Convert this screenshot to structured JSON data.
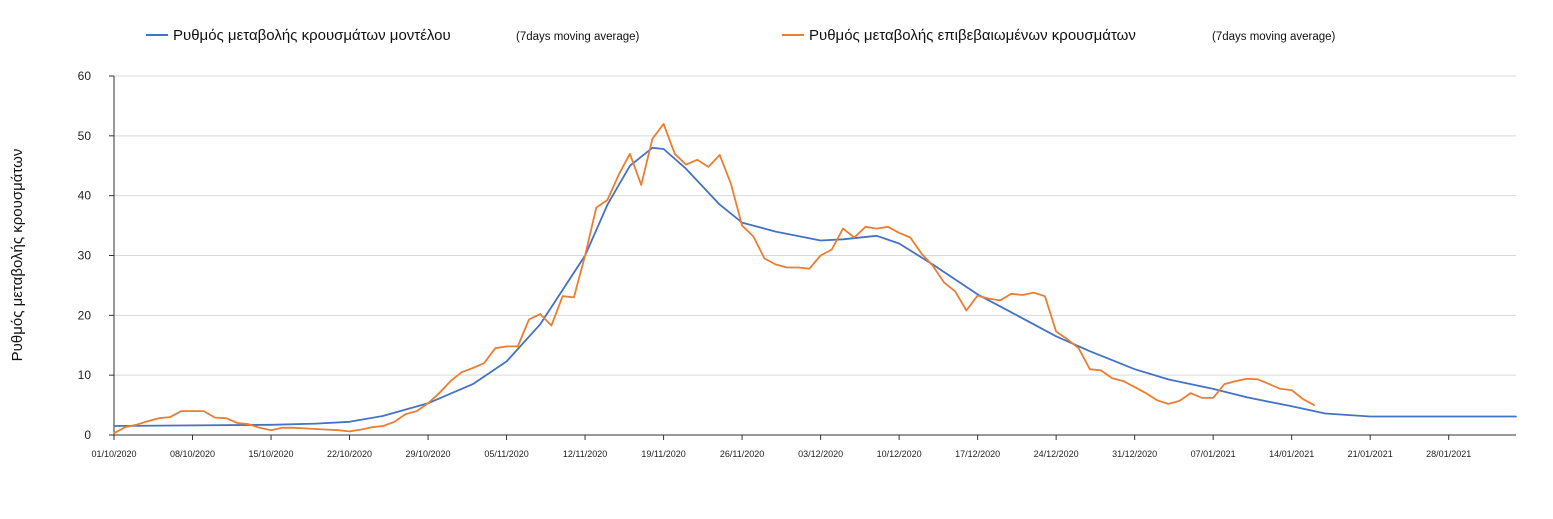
{
  "chart_data": {
    "type": "line",
    "title": "",
    "xlabel": "",
    "ylabel": "Ρυθμός μεταβολής κρουσμάτων",
    "ylim": [
      0,
      60
    ],
    "yticks": [
      0,
      10,
      20,
      30,
      40,
      50,
      60
    ],
    "xlim": [
      "01/10/2020",
      "03/02/2021"
    ],
    "xticks": [
      "01/10/2020",
      "08/10/2020",
      "15/10/2020",
      "22/10/2020",
      "29/10/2020",
      "05/11/2020",
      "12/11/2020",
      "19/11/2020",
      "26/11/2020",
      "03/12/2020",
      "10/12/2020",
      "17/12/2020",
      "24/12/2020",
      "31/12/2020",
      "07/01/2021",
      "14/01/2021",
      "21/01/2021",
      "28/01/2021"
    ],
    "grid": "horizontal",
    "legend_position": "top",
    "series": [
      {
        "name": "Ρυθμός μεταβολής κρουσμάτων μοντέλου",
        "name_note": "(7days moving average)",
        "color": "#4472C4",
        "points": [
          [
            "01/10/2020",
            1.5
          ],
          [
            "08/10/2020",
            1.6
          ],
          [
            "15/10/2020",
            1.7
          ],
          [
            "19/10/2020",
            1.9
          ],
          [
            "22/10/2020",
            2.2
          ],
          [
            "25/10/2020",
            3.2
          ],
          [
            "29/10/2020",
            5.3
          ],
          [
            "02/11/2020",
            8.5
          ],
          [
            "05/11/2020",
            12.3
          ],
          [
            "08/11/2020",
            18.5
          ],
          [
            "12/11/2020",
            30.0
          ],
          [
            "14/11/2020",
            38.5
          ],
          [
            "16/11/2020",
            45.0
          ],
          [
            "18/11/2020",
            48.0
          ],
          [
            "19/11/2020",
            47.8
          ],
          [
            "21/11/2020",
            44.5
          ],
          [
            "24/11/2020",
            38.5
          ],
          [
            "26/11/2020",
            35.5
          ],
          [
            "29/11/2020",
            34.0
          ],
          [
            "03/12/2020",
            32.5
          ],
          [
            "05/12/2020",
            32.7
          ],
          [
            "08/12/2020",
            33.3
          ],
          [
            "10/12/2020",
            32.0
          ],
          [
            "13/12/2020",
            28.5
          ],
          [
            "17/12/2020",
            23.5
          ],
          [
            "20/12/2020",
            20.5
          ],
          [
            "24/12/2020",
            16.5
          ],
          [
            "27/12/2020",
            14.0
          ],
          [
            "31/12/2020",
            11.0
          ],
          [
            "03/01/2021",
            9.3
          ],
          [
            "07/01/2021",
            7.7
          ],
          [
            "10/01/2021",
            6.3
          ],
          [
            "14/01/2021",
            4.8
          ],
          [
            "17/01/2021",
            3.6
          ],
          [
            "21/01/2021",
            3.1
          ],
          [
            "03/02/2021",
            3.1
          ]
        ]
      },
      {
        "name": "Ρυθμός μεταβολής επιβεβαιωμένων κρουσμάτων",
        "name_note": "(7days moving average)",
        "color": "#ED7D31",
        "points": [
          [
            "01/10/2020",
            0.3
          ],
          [
            "02/10/2020",
            1.3
          ],
          [
            "03/10/2020",
            1.7
          ],
          [
            "04/10/2020",
            2.3
          ],
          [
            "05/10/2020",
            2.8
          ],
          [
            "06/10/2020",
            3.0
          ],
          [
            "07/10/2020",
            4.0
          ],
          [
            "08/10/2020",
            4.0
          ],
          [
            "09/10/2020",
            4.0
          ],
          [
            "10/10/2020",
            2.9
          ],
          [
            "11/10/2020",
            2.8
          ],
          [
            "12/10/2020",
            2.0
          ],
          [
            "13/10/2020",
            1.8
          ],
          [
            "14/10/2020",
            1.2
          ],
          [
            "15/10/2020",
            0.8
          ],
          [
            "16/10/2020",
            1.2
          ],
          [
            "17/10/2020",
            1.2
          ],
          [
            "18/10/2020",
            1.1
          ],
          [
            "19/10/2020",
            1.0
          ],
          [
            "20/10/2020",
            0.9
          ],
          [
            "21/10/2020",
            0.8
          ],
          [
            "22/10/2020",
            0.6
          ],
          [
            "23/10/2020",
            0.9
          ],
          [
            "24/10/2020",
            1.3
          ],
          [
            "25/10/2020",
            1.5
          ],
          [
            "26/10/2020",
            2.2
          ],
          [
            "27/10/2020",
            3.5
          ],
          [
            "28/10/2020",
            4.0
          ],
          [
            "29/10/2020",
            5.3
          ],
          [
            "30/10/2020",
            7.0
          ],
          [
            "31/10/2020",
            9.0
          ],
          [
            "01/11/2020",
            10.5
          ],
          [
            "02/11/2020",
            11.2
          ],
          [
            "03/11/2020",
            12.0
          ],
          [
            "04/11/2020",
            14.5
          ],
          [
            "05/11/2020",
            14.8
          ],
          [
            "06/11/2020",
            14.8
          ],
          [
            "07/11/2020",
            19.3
          ],
          [
            "08/11/2020",
            20.2
          ],
          [
            "09/11/2020",
            18.3
          ],
          [
            "10/11/2020",
            23.2
          ],
          [
            "11/11/2020",
            23.0
          ],
          [
            "12/11/2020",
            30.0
          ],
          [
            "13/11/2020",
            38.0
          ],
          [
            "14/11/2020",
            39.3
          ],
          [
            "15/11/2020",
            43.5
          ],
          [
            "16/11/2020",
            47.0
          ],
          [
            "17/11/2020",
            41.8
          ],
          [
            "18/11/2020",
            49.5
          ],
          [
            "19/11/2020",
            52.0
          ],
          [
            "20/11/2020",
            47.0
          ],
          [
            "21/11/2020",
            45.2
          ],
          [
            "22/11/2020",
            46.0
          ],
          [
            "23/11/2020",
            44.8
          ],
          [
            "24/11/2020",
            46.8
          ],
          [
            "25/11/2020",
            42.0
          ],
          [
            "26/11/2020",
            35.0
          ],
          [
            "27/11/2020",
            33.2
          ],
          [
            "28/11/2020",
            29.5
          ],
          [
            "29/11/2020",
            28.5
          ],
          [
            "30/11/2020",
            28.0
          ],
          [
            "01/12/2020",
            28.0
          ],
          [
            "02/12/2020",
            27.8
          ],
          [
            "03/12/2020",
            30.0
          ],
          [
            "04/12/2020",
            31.0
          ],
          [
            "05/12/2020",
            34.5
          ],
          [
            "06/12/2020",
            33.0
          ],
          [
            "07/12/2020",
            34.8
          ],
          [
            "08/12/2020",
            34.5
          ],
          [
            "09/12/2020",
            34.8
          ],
          [
            "10/12/2020",
            33.8
          ],
          [
            "11/12/2020",
            33.0
          ],
          [
            "12/12/2020",
            30.3
          ],
          [
            "13/12/2020",
            28.3
          ],
          [
            "14/12/2020",
            25.5
          ],
          [
            "15/12/2020",
            24.0
          ],
          [
            "16/12/2020",
            20.8
          ],
          [
            "17/12/2020",
            23.3
          ],
          [
            "18/12/2020",
            22.8
          ],
          [
            "19/12/2020",
            22.5
          ],
          [
            "20/12/2020",
            23.6
          ],
          [
            "21/12/2020",
            23.4
          ],
          [
            "22/12/2020",
            23.8
          ],
          [
            "23/12/2020",
            23.2
          ],
          [
            "24/12/2020",
            17.3
          ],
          [
            "25/12/2020",
            16.0
          ],
          [
            "26/12/2020",
            14.5
          ],
          [
            "27/12/2020",
            11.0
          ],
          [
            "28/12/2020",
            10.8
          ],
          [
            "29/12/2020",
            9.5
          ],
          [
            "30/12/2020",
            9.0
          ],
          [
            "31/12/2020",
            8.0
          ],
          [
            "01/01/2021",
            7.0
          ],
          [
            "02/01/2021",
            5.8
          ],
          [
            "03/01/2021",
            5.2
          ],
          [
            "04/01/2021",
            5.7
          ],
          [
            "05/01/2021",
            7.0
          ],
          [
            "06/01/2021",
            6.2
          ],
          [
            "07/01/2021",
            6.2
          ],
          [
            "08/01/2021",
            8.5
          ],
          [
            "09/01/2021",
            9.0
          ],
          [
            "10/01/2021",
            9.4
          ],
          [
            "11/01/2021",
            9.3
          ],
          [
            "12/01/2021",
            8.5
          ],
          [
            "13/01/2021",
            7.7
          ],
          [
            "14/01/2021",
            7.5
          ],
          [
            "15/01/2021",
            6.0
          ],
          [
            "16/01/2021",
            5.0
          ]
        ]
      }
    ]
  }
}
